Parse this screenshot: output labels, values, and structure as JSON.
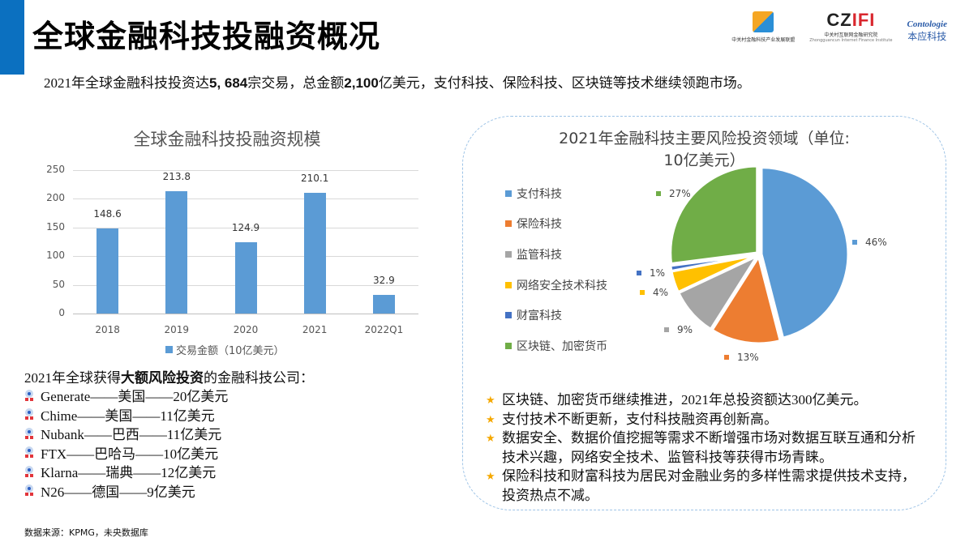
{
  "header": {
    "title": "全球金融科技投融资概况",
    "subtitle_parts": [
      "2021年全球金融科技投资达",
      "5, 684",
      "宗交易，总金额",
      "2,100",
      "亿美元，支付科技、保险科技、区块链等技术继续领跑市场。"
    ],
    "logos": [
      {
        "name": "中关村金融科技产业发展联盟",
        "mark": "ZGC"
      },
      {
        "name": "中关村互联网金融研究院",
        "sub": "Zhongguancun Internet Finance Institute",
        "mark": "CZIFI"
      },
      {
        "name": "本应科技",
        "mark": "Contologie"
      }
    ]
  },
  "chart_data": [
    {
      "type": "bar",
      "title": "全球金融科技投融资规模",
      "categories": [
        "2018",
        "2019",
        "2020",
        "2021",
        "2022Q1"
      ],
      "series": [
        {
          "name": "交易金额（10亿美元）",
          "values": [
            148.6,
            213.8,
            124.9,
            210.1,
            32.9
          ],
          "color": "#5b9bd5"
        }
      ],
      "yticks": [
        0,
        50,
        100,
        150,
        200,
        250
      ],
      "ylim": [
        0,
        250
      ],
      "grid": true,
      "legend_position": "bottom"
    },
    {
      "type": "pie",
      "title": "2021年金融科技主要风险投资领域（单位:10亿美元）",
      "title_lines": [
        "2021年金融科技主要风险投资领域（单位:",
        "10亿美元）"
      ],
      "categories": [
        "支付科技",
        "保险科技",
        "监管科技",
        "网络安全技术科技",
        "财富科技",
        "区块链、加密货币"
      ],
      "values": [
        46,
        13,
        9,
        4,
        1,
        27
      ],
      "labels": [
        "46%",
        "13%",
        "9%",
        "4%",
        "1%",
        "27%"
      ],
      "colors": [
        "#5b9bd5",
        "#ed7d31",
        "#a5a5a5",
        "#ffc000",
        "#4472c4",
        "#70ad47"
      ],
      "legend_position": "left"
    }
  ],
  "companies": {
    "heading_parts": [
      "2021年全球获得",
      "大额风险投资",
      "的金融科技公司："
    ],
    "items": [
      "Generate——美国——20亿美元",
      "Chime——美国——11亿美元",
      "Nubank——巴西——11亿美元",
      "FTX——巴哈马——10亿美元",
      "Klarna——瑞典——12亿美元",
      "N26——德国——9亿美元"
    ]
  },
  "notes": [
    "区块链、加密货币继续推进，2021年总投资额达300亿美元。",
    "支付技术不断更新，支付科技融资再创新高。",
    "数据安全、数据价值挖掘等需求不断增强市场对数据互联互通和分析技术兴趣，网络安全技术、监管科技等获得市场青睐。",
    "保险科技和财富科技为居民对金融业务的多样性需求提供技术支持，投资热点不减。"
  ],
  "source": "数据来源：KPMG，未央数据库",
  "colors": {
    "accent": "#0b70c0",
    "bar": "#5b9bd5",
    "star": "#f5a800",
    "panel_border": "#9dc3e6"
  }
}
